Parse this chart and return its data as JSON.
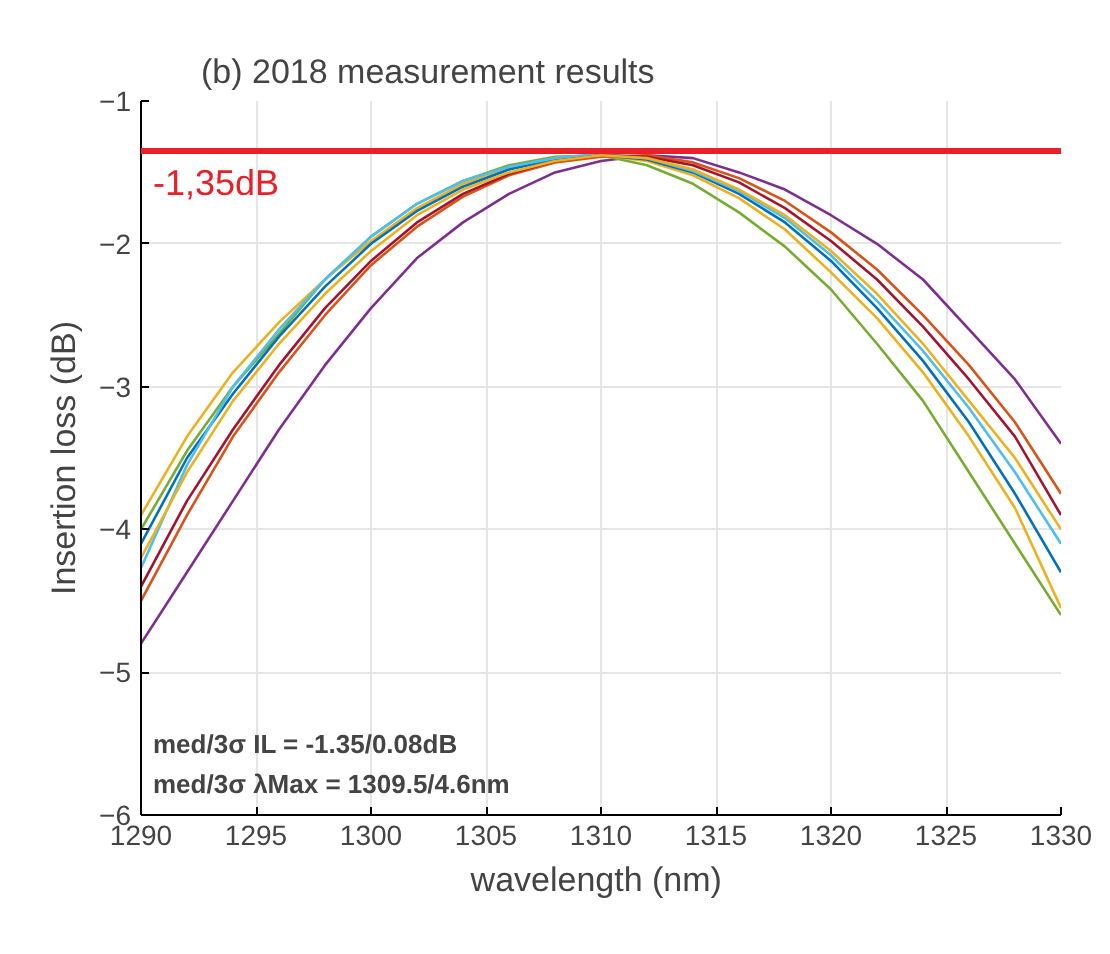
{
  "chart_data": {
    "type": "line",
    "title": "(b) 2018 measurement results",
    "xlabel": "wavelength  (nm)",
    "ylabel": "Insertion loss (dB)",
    "x": [
      1290,
      1292,
      1294,
      1296,
      1298,
      1300,
      1302,
      1304,
      1306,
      1308,
      1310,
      1312,
      1314,
      1316,
      1318,
      1320,
      1322,
      1324,
      1326,
      1328,
      1330
    ],
    "series": [
      {
        "color": "#7e2f8e",
        "values": [
          -4.8,
          -4.3,
          -3.8,
          -3.3,
          -2.85,
          -2.45,
          -2.1,
          -1.85,
          -1.65,
          -1.5,
          -1.42,
          -1.38,
          -1.4,
          -1.5,
          -1.62,
          -1.8,
          -2.0,
          -2.25,
          -2.6,
          -2.95,
          -3.4
        ]
      },
      {
        "color": "#77ac30",
        "values": [
          -4.0,
          -3.45,
          -3.0,
          -2.63,
          -2.25,
          -1.95,
          -1.72,
          -1.56,
          -1.45,
          -1.39,
          -1.38,
          -1.45,
          -1.58,
          -1.78,
          -2.02,
          -2.32,
          -2.7,
          -3.1,
          -3.6,
          -4.1,
          -4.6
        ]
      },
      {
        "color": "#edb120",
        "values": [
          -3.9,
          -3.35,
          -2.9,
          -2.55,
          -2.25,
          -1.98,
          -1.75,
          -1.58,
          -1.47,
          -1.4,
          -1.38,
          -1.42,
          -1.52,
          -1.68,
          -1.9,
          -2.2,
          -2.52,
          -2.9,
          -3.35,
          -3.85,
          -4.55
        ]
      },
      {
        "color": "#0072bd",
        "values": [
          -4.1,
          -3.5,
          -3.05,
          -2.65,
          -2.3,
          -2.0,
          -1.77,
          -1.6,
          -1.48,
          -1.41,
          -1.38,
          -1.41,
          -1.5,
          -1.65,
          -1.85,
          -2.12,
          -2.45,
          -2.82,
          -3.25,
          -3.75,
          -4.3
        ]
      },
      {
        "color": "#d95319",
        "values": [
          -4.5,
          -3.9,
          -3.35,
          -2.9,
          -2.5,
          -2.15,
          -1.88,
          -1.67,
          -1.52,
          -1.43,
          -1.39,
          -1.38,
          -1.43,
          -1.54,
          -1.7,
          -1.92,
          -2.18,
          -2.5,
          -2.85,
          -3.25,
          -3.75
        ]
      },
      {
        "color": "#4dbeee",
        "values": [
          -4.27,
          -3.55,
          -3.0,
          -2.6,
          -2.25,
          -1.95,
          -1.72,
          -1.56,
          -1.46,
          -1.4,
          -1.37,
          -1.4,
          -1.49,
          -1.63,
          -1.82,
          -2.08,
          -2.4,
          -2.75,
          -3.15,
          -3.6,
          -4.1
        ]
      },
      {
        "color": "#a2142f",
        "values": [
          -4.4,
          -3.8,
          -3.3,
          -2.85,
          -2.45,
          -2.12,
          -1.85,
          -1.65,
          -1.51,
          -1.42,
          -1.38,
          -1.39,
          -1.45,
          -1.57,
          -1.75,
          -1.98,
          -2.25,
          -2.58,
          -2.95,
          -3.35,
          -3.9
        ]
      },
      {
        "color": "#edb120",
        "values": [
          -4.2,
          -3.6,
          -3.1,
          -2.7,
          -2.35,
          -2.05,
          -1.8,
          -1.62,
          -1.5,
          -1.42,
          -1.38,
          -1.4,
          -1.48,
          -1.62,
          -1.8,
          -2.05,
          -2.35,
          -2.7,
          -3.1,
          -3.5,
          -4.0
        ]
      }
    ],
    "xlim": [
      1290,
      1330
    ],
    "xticks": [
      1290,
      1295,
      1300,
      1305,
      1310,
      1315,
      1320,
      1325,
      1330
    ],
    "ylim": [
      -6,
      -1
    ],
    "yticks": [
      -6,
      -5,
      -4,
      -3,
      -2,
      -1
    ],
    "ref_lines": [
      {
        "axis": "y",
        "value": -1.35,
        "label": "-1,35dB",
        "color": "#e8202a"
      }
    ],
    "annotations": [
      "med/3σ IL = -1.35/0.08dB",
      "med/3σ λMax = 1309.5/4.6nm"
    ],
    "grid": true,
    "marker": "none",
    "line_style": "solid"
  }
}
